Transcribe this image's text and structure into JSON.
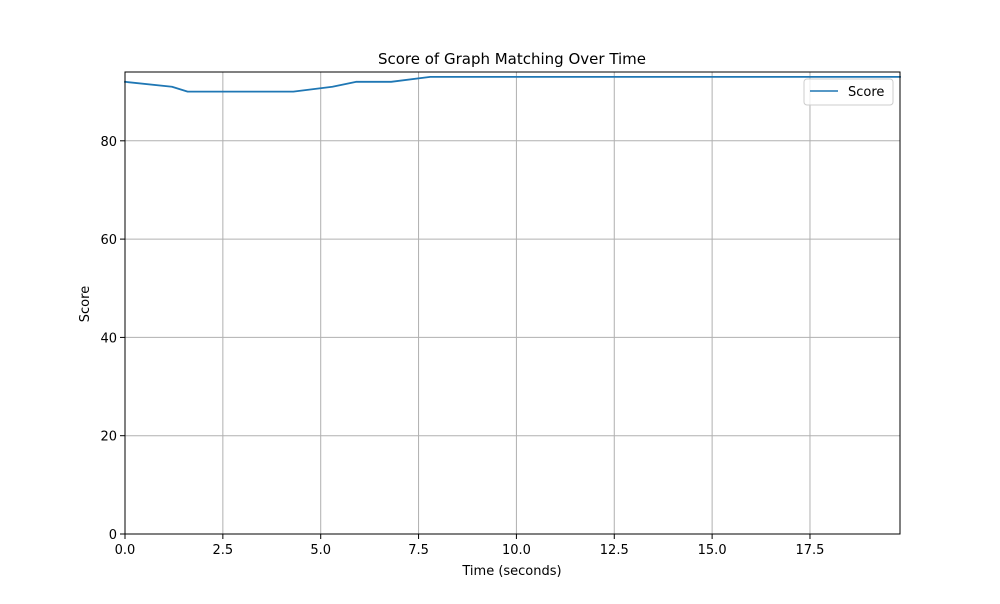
{
  "chart_data": {
    "type": "line",
    "title": "Score of Graph Matching Over Time",
    "xlabel": "Time (seconds)",
    "ylabel": "Score",
    "xlim": [
      0,
      19.8
    ],
    "ylim": [
      0,
      94
    ],
    "xticks": [
      0,
      2.5,
      5,
      7.5,
      10,
      12.5,
      15,
      17.5
    ],
    "xtick_labels": [
      "0.0",
      "2.5",
      "5.0",
      "7.5",
      "10.0",
      "12.5",
      "15.0",
      "17.5"
    ],
    "yticks": [
      0,
      20,
      40,
      60,
      80
    ],
    "ytick_labels": [
      "0",
      "20",
      "40",
      "60",
      "80"
    ],
    "grid": true,
    "legend": {
      "position": "top-right"
    },
    "series": [
      {
        "name": "Score",
        "color": "#1f77b4",
        "x": [
          0,
          1.2,
          1.6,
          2.5,
          3.5,
          4.3,
          5.3,
          5.9,
          6.8,
          7.8,
          10,
          15,
          19.8
        ],
        "y": [
          92,
          91,
          90,
          90,
          90,
          90,
          91,
          92,
          92,
          93,
          93,
          93,
          93
        ]
      }
    ]
  }
}
